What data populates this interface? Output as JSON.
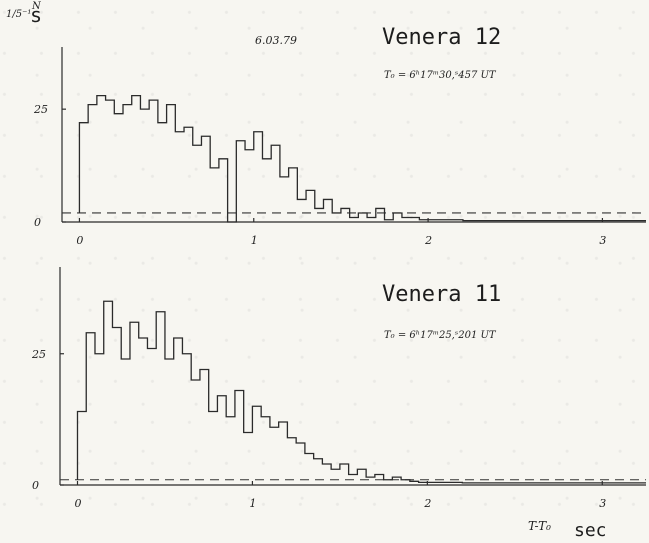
{
  "y_label_top": "N",
  "y_label_sub": "1/5⁻¹",
  "y_label_unit": "s",
  "date": "6.03.79",
  "x_axis_label": "T-T₀",
  "x_axis_unit": "sec",
  "chart_data": [
    {
      "type": "line",
      "title": "Venera 12",
      "annotation": "T₀ = 6ʰ17ᵐ30,ˢ457 UT",
      "xlim": [
        -0.1,
        3.25
      ],
      "ylim": [
        0,
        37
      ],
      "x_ticks": [
        0,
        1,
        2,
        3
      ],
      "y_ticks": [
        0,
        25
      ],
      "y_tick_labels": [
        "0",
        "25"
      ],
      "background_level": 2,
      "series": [
        {
          "x": [
            0.0,
            0.05,
            0.1,
            0.15,
            0.2,
            0.25,
            0.3,
            0.35,
            0.4,
            0.45,
            0.5,
            0.55,
            0.6,
            0.65,
            0.7,
            0.75,
            0.8,
            0.85,
            0.9,
            0.95,
            1.0,
            1.05,
            1.1,
            1.15,
            1.2,
            1.25,
            1.3,
            1.35,
            1.4,
            1.45,
            1.5,
            1.55,
            1.6,
            1.65,
            1.7,
            1.75,
            1.8,
            1.85,
            1.9,
            1.95,
            2.0,
            2.1,
            2.2,
            2.3,
            2.4,
            2.5,
            2.6,
            2.7,
            2.8,
            2.9,
            3.0,
            3.1,
            3.2
          ],
          "values": [
            22,
            26,
            28,
            27,
            24,
            26,
            28,
            25,
            27,
            22,
            26,
            20,
            21,
            17,
            19,
            12,
            14,
            0,
            18,
            16,
            20,
            14,
            17,
            10,
            12,
            5,
            7,
            3,
            5,
            2,
            3,
            1,
            2,
            1,
            3,
            0.5,
            2,
            1,
            1,
            0.5,
            0.5,
            0.5,
            0.3,
            0.3,
            0.3,
            0.3,
            0.3,
            0.3,
            0.3,
            0.3,
            0.3,
            0.3,
            0.3
          ]
        }
      ]
    },
    {
      "type": "line",
      "title": "Venera 11",
      "annotation": "T₀ = 6ʰ17ᵐ25,ˢ201 UT",
      "xlim": [
        -0.1,
        3.25
      ],
      "ylim": [
        0,
        40
      ],
      "x_ticks": [
        0,
        1,
        2,
        3
      ],
      "y_ticks": [
        0,
        25
      ],
      "y_tick_labels": [
        "0",
        "25"
      ],
      "background_level": 1,
      "series": [
        {
          "x": [
            0.0,
            0.05,
            0.1,
            0.15,
            0.2,
            0.25,
            0.3,
            0.35,
            0.4,
            0.45,
            0.5,
            0.55,
            0.6,
            0.65,
            0.7,
            0.75,
            0.8,
            0.85,
            0.9,
            0.95,
            1.0,
            1.05,
            1.1,
            1.15,
            1.2,
            1.25,
            1.3,
            1.35,
            1.4,
            1.45,
            1.5,
            1.55,
            1.6,
            1.65,
            1.7,
            1.75,
            1.8,
            1.85,
            1.9,
            1.95,
            2.0,
            2.1,
            2.2,
            2.3,
            2.4,
            2.5,
            2.6,
            2.7,
            2.8,
            2.9,
            3.0,
            3.1,
            3.2
          ],
          "values": [
            14,
            29,
            25,
            35,
            30,
            24,
            31,
            28,
            26,
            33,
            24,
            28,
            25,
            20,
            22,
            14,
            17,
            13,
            18,
            10,
            15,
            13,
            11,
            12,
            9,
            8,
            6,
            5,
            4,
            3,
            4,
            2,
            3,
            1.5,
            2,
            1,
            1.5,
            1,
            0.7,
            0.5,
            0.5,
            0.5,
            0.4,
            0.4,
            0.4,
            0.4,
            0.4,
            0.4,
            0.4,
            0.4,
            0.4,
            0.4,
            0.4
          ]
        }
      ]
    }
  ]
}
